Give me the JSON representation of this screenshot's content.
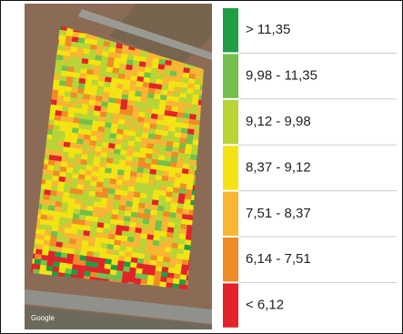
{
  "map": {
    "attribution": "Google"
  },
  "legend": {
    "items": [
      {
        "label": "> 11,35",
        "color": "#1f9e45"
      },
      {
        "label": "9,98 - 11,35",
        "color": "#73c04c"
      },
      {
        "label": "9,12 - 9,98",
        "color": "#b8d437"
      },
      {
        "label": "8,37 - 9,12",
        "color": "#f4e312"
      },
      {
        "label": "7,51 - 8,37",
        "color": "#f8b635"
      },
      {
        "label": "6,14 - 7,51",
        "color": "#f08b27"
      },
      {
        "label": "< 6,12",
        "color": "#e32329"
      }
    ]
  }
}
